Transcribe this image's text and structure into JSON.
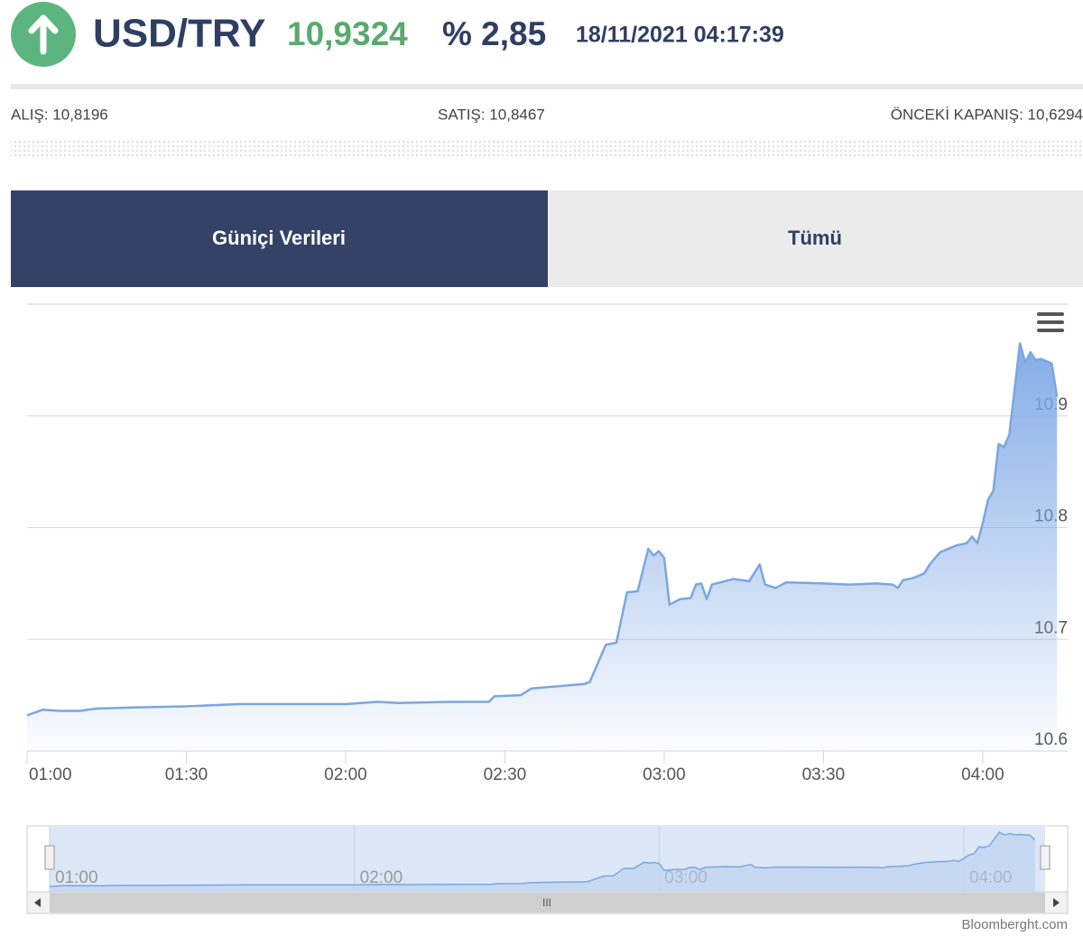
{
  "header": {
    "symbol": "USD/TRY",
    "price": "10,9324",
    "change": "% 2,85",
    "datetime": "18/11/2021 04:17:39"
  },
  "stats": [
    "ALIŞ: 10,8196",
    "SATIŞ: 10,8467",
    "ÖNCEKİ KAPANIŞ: 10,6294"
  ],
  "tabs": [
    "Güniçi Verileri",
    "Tümü"
  ],
  "chart_data": {
    "type": "area",
    "color": "#7aa7e0",
    "grid": true,
    "x": [
      "01:00",
      "01:03",
      "01:06",
      "01:10",
      "01:13",
      "01:20",
      "01:30",
      "01:40",
      "01:50",
      "02:00",
      "02:06",
      "02:10",
      "02:20",
      "02:27",
      "02:28",
      "02:33",
      "02:35",
      "02:40",
      "02:45",
      "02:46",
      "02:49",
      "02:51",
      "02:53",
      "02:55",
      "02:57",
      "02:58",
      "02:59",
      "03:00",
      "03:01",
      "03:03",
      "03:05",
      "03:06",
      "03:07",
      "03:08",
      "03:09",
      "03:13",
      "03:16",
      "03:18",
      "03:19",
      "03:21",
      "03:23",
      "03:30",
      "03:35",
      "03:40",
      "03:43",
      "03:44",
      "03:45",
      "03:47",
      "03:49",
      "03:50",
      "03:52",
      "03:55",
      "03:57",
      "03:58",
      "03:59",
      "04:00",
      "04:01",
      "04:02",
      "04:03",
      "04:04",
      "04:05",
      "04:07",
      "04:08",
      "04:09",
      "04:10",
      "04:11",
      "04:13",
      "04:14"
    ],
    "values": [
      10.632,
      10.637,
      10.636,
      10.636,
      10.638,
      10.639,
      10.64,
      10.642,
      10.642,
      10.642,
      10.644,
      10.643,
      10.644,
      10.644,
      10.649,
      10.65,
      10.656,
      10.658,
      10.66,
      10.662,
      10.695,
      10.697,
      10.742,
      10.743,
      10.781,
      10.775,
      10.779,
      10.773,
      10.731,
      10.736,
      10.737,
      10.749,
      10.75,
      10.736,
      10.749,
      10.754,
      10.752,
      10.767,
      10.749,
      10.746,
      10.751,
      10.75,
      10.749,
      10.75,
      10.749,
      10.746,
      10.753,
      10.755,
      10.759,
      10.767,
      10.778,
      10.784,
      10.786,
      10.792,
      10.786,
      10.804,
      10.825,
      10.833,
      10.875,
      10.872,
      10.883,
      10.965,
      10.948,
      10.957,
      10.95,
      10.951,
      10.947,
      10.917
    ],
    "xlim": [
      "01:00",
      "04:16"
    ],
    "xticks": [
      "01:00",
      "01:30",
      "02:00",
      "02:30",
      "03:00",
      "03:30",
      "04:00"
    ],
    "ylim": [
      10.6,
      11.0
    ],
    "yticks": [
      10.6,
      10.7,
      10.8,
      10.9
    ]
  },
  "credit": "Bloomberght.com"
}
